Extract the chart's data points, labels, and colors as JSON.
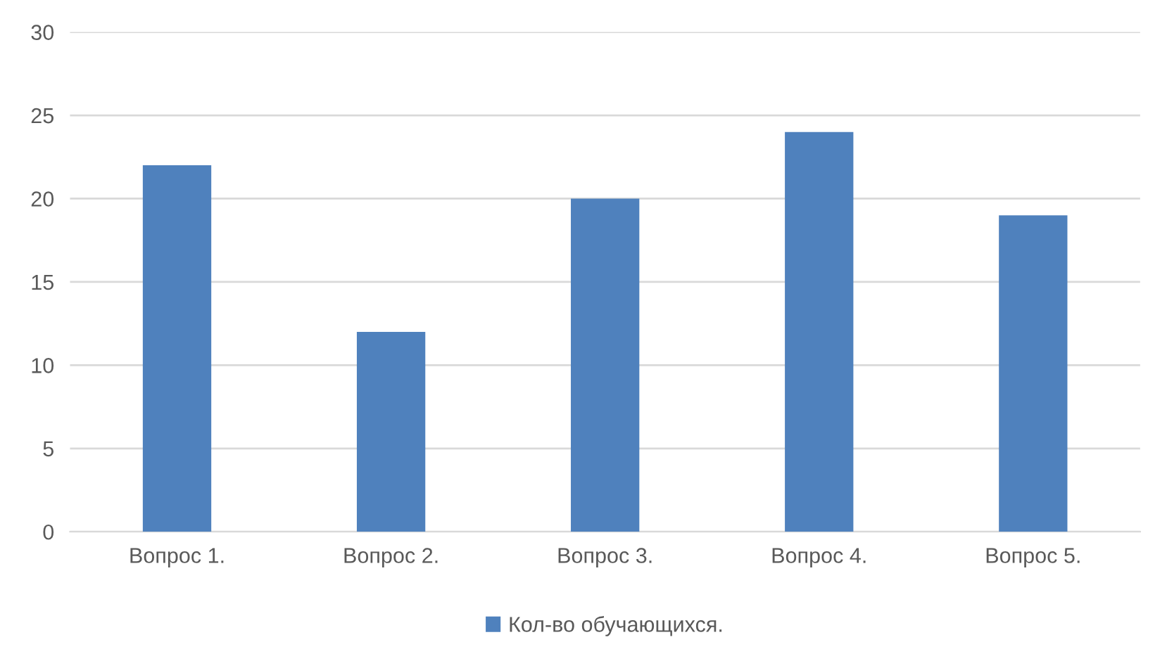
{
  "chart_data": {
    "type": "bar",
    "categories": [
      "Вопрос 1.",
      "Вопрос 2.",
      "Вопрос 3.",
      "Вопрос 4.",
      "Вопрос 5."
    ],
    "series": [
      {
        "name": "Кол-во обучающихся.",
        "color": "#4f81bd",
        "values": [
          22,
          12,
          20,
          24,
          19
        ]
      }
    ],
    "ylim": [
      0,
      30
    ],
    "yticks": [
      0,
      5,
      10,
      15,
      20,
      25,
      30
    ],
    "grid": "y",
    "legend": "bottom"
  }
}
